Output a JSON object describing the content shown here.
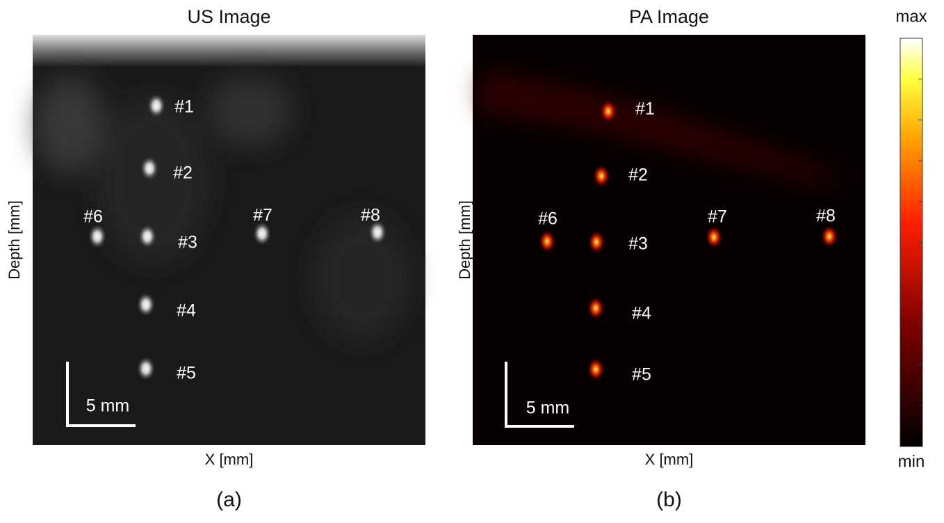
{
  "panels": [
    {
      "title": "US Image",
      "x_label": "X [mm]",
      "y_label": "Depth [mm]",
      "scale_bar": "5 mm",
      "caption": "(a)",
      "targets": [
        "#1",
        "#2",
        "#3",
        "#4",
        "#5",
        "#6",
        "#7",
        "#8"
      ]
    },
    {
      "title": "PA Image",
      "x_label": "X [mm]",
      "y_label": "Depth [mm]",
      "scale_bar": "5 mm",
      "caption": "(b)",
      "targets": [
        "#1",
        "#2",
        "#3",
        "#4",
        "#5",
        "#6",
        "#7",
        "#8"
      ]
    }
  ],
  "colorbar": {
    "max": "max",
    "min": "min"
  }
}
